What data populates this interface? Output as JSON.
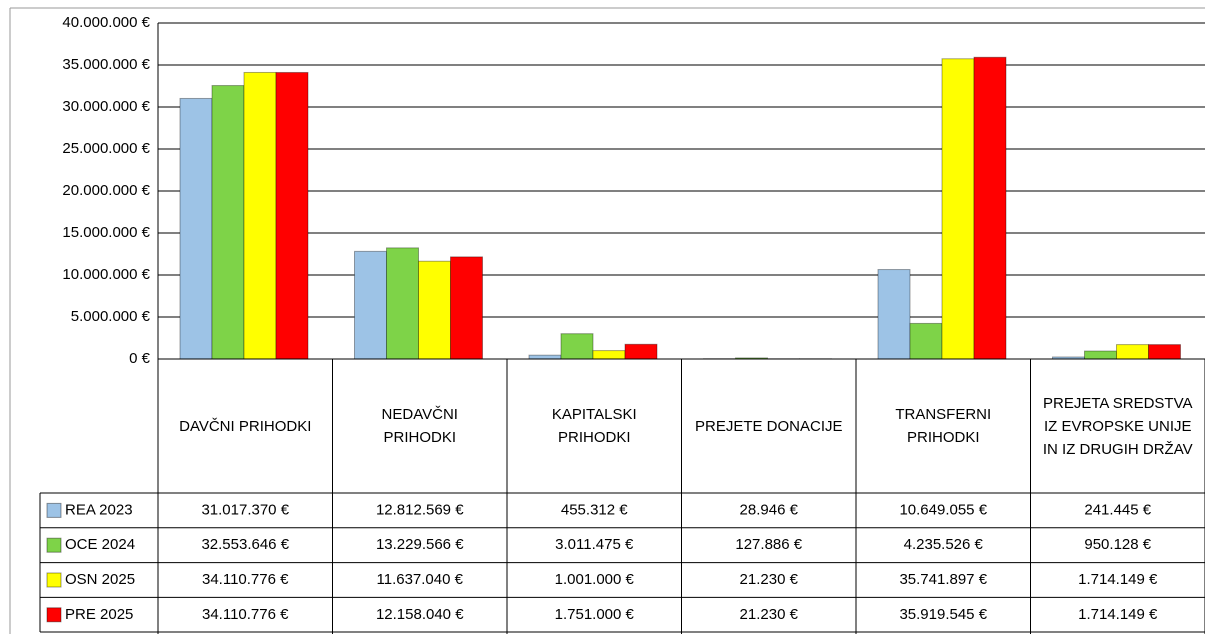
{
  "chart_data": {
    "type": "bar",
    "categories": [
      "DAVČNI PRIHODKI",
      "NEDAVČNI PRIHODKI",
      "KAPITALSKI PRIHODKI",
      "PREJETE DONACIJE",
      "TRANSFERNI PRIHODKI",
      "PREJETA SREDSTVA IZ EVROPSKE UNIJE IN IZ DRUGIH DRŽAV"
    ],
    "series": [
      {
        "name": "REA 2023",
        "color": "#9dc3e6",
        "values": [
          31017370,
          12812569,
          455312,
          28946,
          10649055,
          241445
        ],
        "value_labels": [
          "31.017.370 €",
          "12.812.569 €",
          "455.312 €",
          "28.946 €",
          "10.649.055 €",
          "241.445 €"
        ]
      },
      {
        "name": "OCE 2024",
        "color": "#7ed348",
        "values": [
          32553646,
          13229566,
          3011475,
          127886,
          4235526,
          950128
        ],
        "value_labels": [
          "32.553.646 €",
          "13.229.566 €",
          "3.011.475 €",
          "127.886 €",
          "4.235.526 €",
          "950.128 €"
        ]
      },
      {
        "name": "OSN 2025",
        "color": "#ffff00",
        "values": [
          34110776,
          11637040,
          1001000,
          21230,
          35741897,
          1714149
        ],
        "value_labels": [
          "34.110.776 €",
          "11.637.040 €",
          "1.001.000 €",
          "21.230 €",
          "35.741.897 €",
          "1.714.149 €"
        ]
      },
      {
        "name": "PRE 2025",
        "color": "#ff0000",
        "values": [
          34110776,
          12158040,
          1751000,
          21230,
          35919545,
          1714149
        ],
        "value_labels": [
          "34.110.776 €",
          "12.158.040 €",
          "1.751.000 €",
          "21.230 €",
          "35.919.545 €",
          "1.714.149 €"
        ]
      }
    ],
    "ylim": [
      0,
      40000000
    ],
    "yticks": [
      {
        "value": 0,
        "label": "0 €"
      },
      {
        "value": 5000000,
        "label": "5.000.000 €"
      },
      {
        "value": 10000000,
        "label": "10.000.000 €"
      },
      {
        "value": 15000000,
        "label": "15.000.000 €"
      },
      {
        "value": 20000000,
        "label": "20.000.000 €"
      },
      {
        "value": 25000000,
        "label": "25.000.000 €"
      },
      {
        "value": 30000000,
        "label": "30.000.000 €"
      },
      {
        "value": 35000000,
        "label": "35.000.000 €"
      },
      {
        "value": 40000000,
        "label": "40.000.000 €"
      }
    ],
    "grid": true
  }
}
